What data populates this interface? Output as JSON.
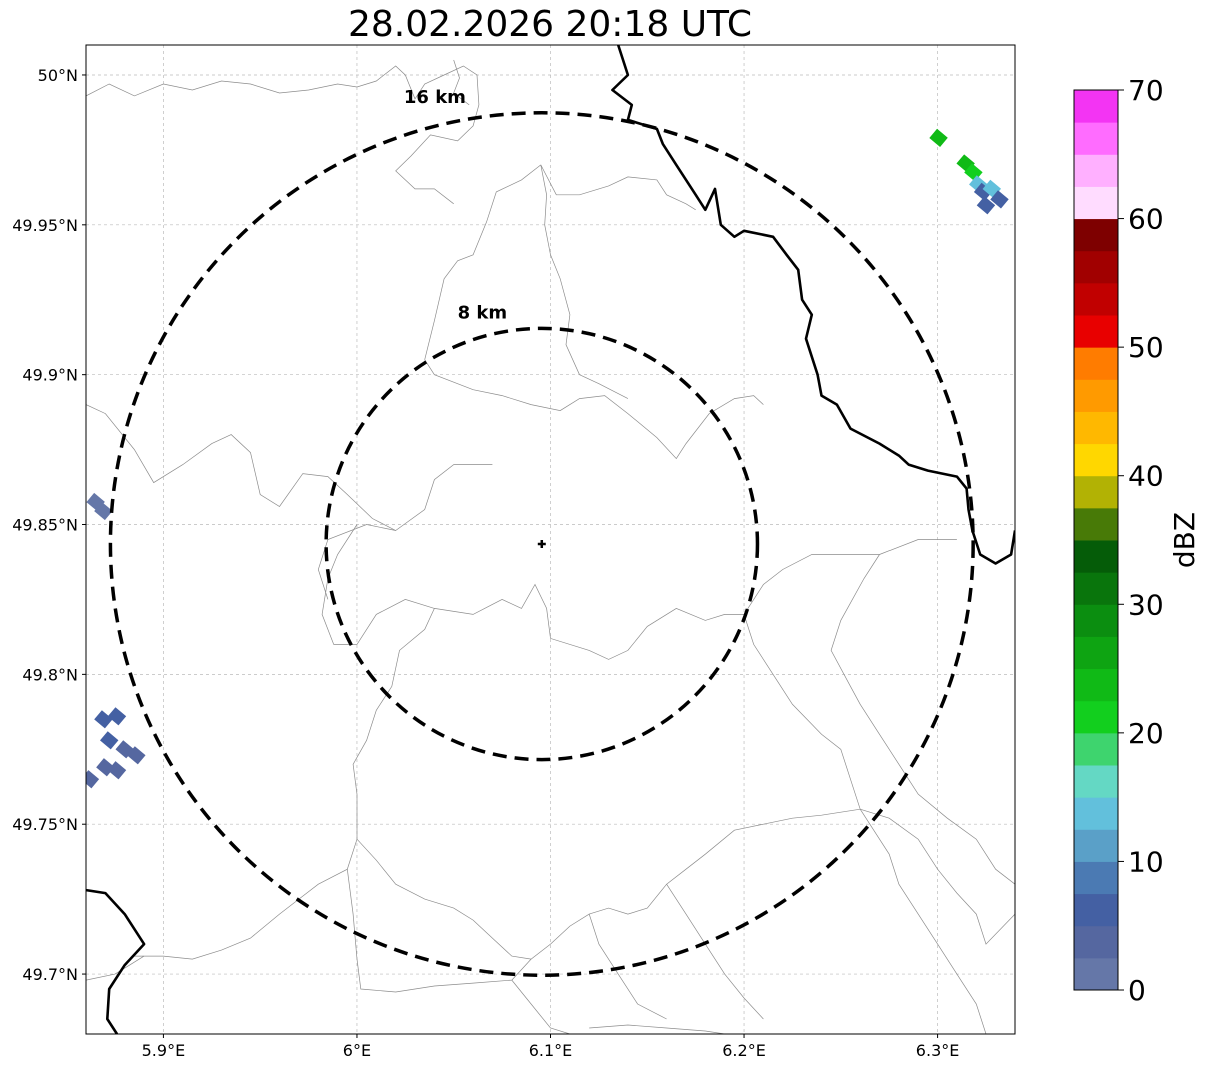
{
  "title": "28.02.2026 20:18 UTC",
  "map": {
    "lon_range": [
      5.86,
      6.34
    ],
    "lat_range": [
      49.68,
      50.01
    ],
    "grid": true,
    "lon_ticks": [
      {
        "value": 5.9,
        "label": "5.9°E"
      },
      {
        "value": 6.0,
        "label": "6°E"
      },
      {
        "value": 6.1,
        "label": "6.1°E"
      },
      {
        "value": 6.2,
        "label": "6.2°E"
      },
      {
        "value": 6.3,
        "label": "6.3°E"
      }
    ],
    "lat_ticks": [
      {
        "value": 50.0,
        "label": "50°N"
      },
      {
        "value": 49.95,
        "label": "49.95°N"
      },
      {
        "value": 49.9,
        "label": "49.9°N"
      },
      {
        "value": 49.85,
        "label": "49.85°N"
      },
      {
        "value": 49.8,
        "label": "49.8°N"
      },
      {
        "value": 49.75,
        "label": "49.75°N"
      },
      {
        "value": 49.7,
        "label": "49.7°N"
      }
    ],
    "radar_center": {
      "lon": 6.0955,
      "lat": 49.8435
    },
    "range_rings": [
      {
        "label": "8 km",
        "radius_km": 8
      },
      {
        "label": "16 km",
        "radius_km": 16
      }
    ]
  },
  "colorbar": {
    "label": "dBZ",
    "ticks": [
      {
        "value": 0,
        "label": "0"
      },
      {
        "value": 10,
        "label": "10"
      },
      {
        "value": 20,
        "label": "20"
      },
      {
        "value": 30,
        "label": "30"
      },
      {
        "value": 40,
        "label": "40"
      },
      {
        "value": 50,
        "label": "50"
      },
      {
        "value": 60,
        "label": "60"
      },
      {
        "value": 70,
        "label": "70"
      }
    ],
    "colors": [
      "#6577a8",
      "#5567a0",
      "#4460a3",
      "#4b7ab3",
      "#5aa0c8",
      "#62c0dc",
      "#64d8c4",
      "#3ed46e",
      "#12cf1e",
      "#10ba16",
      "#0ea412",
      "#0b8e10",
      "#09750c",
      "#055c08",
      "#487a07",
      "#b2b204",
      "#ffd700",
      "#ffb800",
      "#ff9a00",
      "#ff7c00",
      "#e80000",
      "#c10000",
      "#a10000",
      "#7e0000",
      "#ffdcff",
      "#ffb0ff",
      "#ff6cff",
      "#f334f3"
    ]
  },
  "echoes": [
    {
      "lon": 6.3005,
      "lat": 49.979,
      "dbz": 24
    },
    {
      "lon": 6.3145,
      "lat": 49.9705,
      "dbz": 24
    },
    {
      "lon": 6.3185,
      "lat": 49.9675,
      "dbz": 20
    },
    {
      "lon": 6.321,
      "lat": 49.9635,
      "dbz": 13
    },
    {
      "lon": 6.3235,
      "lat": 49.961,
      "dbz": 7
    },
    {
      "lon": 6.328,
      "lat": 49.962,
      "dbz": 13
    },
    {
      "lon": 6.332,
      "lat": 49.9585,
      "dbz": 7
    },
    {
      "lon": 6.325,
      "lat": 49.9565,
      "dbz": 7
    },
    {
      "lon": 5.865,
      "lat": 49.8575,
      "dbz": 2
    },
    {
      "lon": 5.869,
      "lat": 49.8545,
      "dbz": 2
    },
    {
      "lon": 5.869,
      "lat": 49.785,
      "dbz": 5
    },
    {
      "lon": 5.876,
      "lat": 49.786,
      "dbz": 5
    },
    {
      "lon": 5.872,
      "lat": 49.778,
      "dbz": 5
    },
    {
      "lon": 5.88,
      "lat": 49.775,
      "dbz": 3
    },
    {
      "lon": 5.886,
      "lat": 49.773,
      "dbz": 3
    },
    {
      "lon": 5.87,
      "lat": 49.769,
      "dbz": 3
    },
    {
      "lon": 5.876,
      "lat": 49.768,
      "dbz": 3
    },
    {
      "lon": 5.862,
      "lat": 49.765,
      "dbz": 3
    }
  ],
  "borders": [
    [
      [
        6.135,
        50.01
      ],
      [
        6.14,
        50.0
      ],
      [
        6.132,
        49.995
      ],
      [
        6.142,
        49.99
      ],
      [
        6.14,
        49.985
      ],
      [
        6.155,
        49.982
      ],
      [
        6.158,
        49.977
      ],
      [
        6.165,
        49.97
      ],
      [
        6.175,
        49.96
      ],
      [
        6.18,
        49.955
      ],
      [
        6.185,
        49.962
      ],
      [
        6.188,
        49.95
      ],
      [
        6.195,
        49.946
      ],
      [
        6.2,
        49.948
      ],
      [
        6.215,
        49.946
      ],
      [
        6.222,
        49.94
      ],
      [
        6.228,
        49.935
      ],
      [
        6.23,
        49.925
      ],
      [
        6.235,
        49.92
      ],
      [
        6.232,
        49.912
      ],
      [
        6.238,
        49.9
      ],
      [
        6.24,
        49.893
      ],
      [
        6.248,
        49.89
      ],
      [
        6.255,
        49.882
      ],
      [
        6.27,
        49.877
      ],
      [
        6.28,
        49.873
      ],
      [
        6.285,
        49.87
      ],
      [
        6.295,
        49.868
      ],
      [
        6.31,
        49.866
      ],
      [
        6.315,
        49.862
      ],
      [
        6.316,
        49.855
      ],
      [
        6.318,
        49.848
      ],
      [
        6.322,
        49.84
      ],
      [
        6.33,
        49.837
      ],
      [
        6.338,
        49.84
      ],
      [
        6.34,
        49.848
      ]
    ],
    [
      [
        5.86,
        49.728
      ],
      [
        5.87,
        49.727
      ],
      [
        5.88,
        49.72
      ],
      [
        5.89,
        49.71
      ],
      [
        5.88,
        49.703
      ],
      [
        5.872,
        49.695
      ],
      [
        5.871,
        49.685
      ],
      [
        5.876,
        49.68
      ]
    ]
  ],
  "admin_lines": [
    [
      [
        5.86,
        49.993
      ],
      [
        5.872,
        49.997
      ],
      [
        5.885,
        49.993
      ],
      [
        5.9,
        49.997
      ],
      [
        5.915,
        49.995
      ],
      [
        5.93,
        49.998
      ],
      [
        5.945,
        49.997
      ],
      [
        5.96,
        49.994
      ],
      [
        5.975,
        49.995
      ],
      [
        5.99,
        49.997
      ],
      [
        6.0,
        49.996
      ],
      [
        6.01,
        49.998
      ],
      [
        6.02,
        50.003
      ],
      [
        6.025,
        50.0
      ],
      [
        6.03,
        49.992
      ],
      [
        6.035,
        49.997
      ],
      [
        6.045,
        50.0
      ],
      [
        6.055,
        50.003
      ],
      [
        6.062,
        50.0
      ],
      [
        6.063,
        49.99
      ],
      [
        6.06,
        49.983
      ],
      [
        6.052,
        49.978
      ],
      [
        6.038,
        49.98
      ],
      [
        6.028,
        49.973
      ],
      [
        6.02,
        49.968
      ],
      [
        6.03,
        49.962
      ],
      [
        6.04,
        49.962
      ],
      [
        6.05,
        49.957
      ]
    ],
    [
      [
        6.05,
        50.005
      ],
      [
        6.053,
        49.999
      ],
      [
        6.05,
        49.994
      ],
      [
        6.058,
        49.99
      ]
    ],
    [
      [
        6.095,
        49.97
      ],
      [
        6.085,
        49.965
      ],
      [
        6.072,
        49.961
      ],
      [
        6.067,
        49.951
      ],
      [
        6.06,
        49.94
      ],
      [
        6.052,
        49.938
      ],
      [
        6.045,
        49.932
      ],
      [
        6.04,
        49.918
      ],
      [
        6.035,
        49.905
      ]
    ],
    [
      [
        6.095,
        49.97
      ],
      [
        6.098,
        49.96
      ],
      [
        6.097,
        49.95
      ],
      [
        6.1,
        49.94
      ],
      [
        6.105,
        49.932
      ],
      [
        6.11,
        49.92
      ],
      [
        6.108,
        49.91
      ],
      [
        6.115,
        49.9
      ]
    ],
    [
      [
        6.095,
        49.97
      ],
      [
        6.103,
        49.96
      ],
      [
        6.115,
        49.96
      ],
      [
        6.13,
        49.963
      ],
      [
        6.14,
        49.966
      ],
      [
        6.155,
        49.965
      ],
      [
        6.16,
        49.96
      ],
      [
        6.17,
        49.957
      ],
      [
        6.175,
        49.955
      ]
    ],
    [
      [
        5.86,
        49.89
      ],
      [
        5.87,
        49.887
      ],
      [
        5.885,
        49.875
      ],
      [
        5.895,
        49.864
      ],
      [
        5.91,
        49.87
      ],
      [
        5.925,
        49.877
      ],
      [
        5.935,
        49.88
      ],
      [
        5.945,
        49.874
      ],
      [
        5.95,
        49.86
      ],
      [
        5.96,
        49.856
      ],
      [
        5.972,
        49.867
      ],
      [
        5.985,
        49.866
      ],
      [
        5.995,
        49.86
      ],
      [
        6.008,
        49.852
      ],
      [
        6.02,
        49.848
      ],
      [
        6.035,
        49.855
      ],
      [
        6.04,
        49.865
      ],
      [
        6.05,
        49.87
      ],
      [
        6.07,
        49.87
      ]
    ],
    [
      [
        6.035,
        49.905
      ],
      [
        6.04,
        49.9
      ],
      [
        6.06,
        49.895
      ],
      [
        6.075,
        49.893
      ],
      [
        6.09,
        49.89
      ],
      [
        6.105,
        49.888
      ],
      [
        6.115,
        49.892
      ],
      [
        6.128,
        49.893
      ],
      [
        6.14,
        49.887
      ],
      [
        6.155,
        49.879
      ],
      [
        6.165,
        49.872
      ],
      [
        6.17,
        49.877
      ],
      [
        6.182,
        49.887
      ],
      [
        6.195,
        49.892
      ],
      [
        6.205,
        49.893
      ],
      [
        6.21,
        49.89
      ]
    ],
    [
      [
        6.115,
        49.9
      ],
      [
        6.125,
        49.897
      ],
      [
        6.14,
        49.892
      ]
    ],
    [
      [
        6.0,
        49.85
      ],
      [
        5.99,
        49.84
      ],
      [
        5.985,
        49.832
      ],
      [
        5.982,
        49.82
      ],
      [
        5.988,
        49.81
      ],
      [
        6.0,
        49.81
      ],
      [
        6.01,
        49.82
      ],
      [
        6.025,
        49.825
      ],
      [
        6.04,
        49.822
      ],
      [
        6.06,
        49.82
      ],
      [
        6.075,
        49.825
      ],
      [
        6.085,
        49.822
      ],
      [
        6.092,
        49.83
      ],
      [
        6.098,
        49.822
      ],
      [
        6.1,
        49.812
      ],
      [
        6.12,
        49.808
      ],
      [
        6.13,
        49.805
      ],
      [
        6.14,
        49.808
      ],
      [
        6.15,
        49.816
      ],
      [
        6.165,
        49.822
      ],
      [
        6.18,
        49.818
      ],
      [
        6.19,
        49.82
      ],
      [
        6.2,
        49.82
      ]
    ],
    [
      [
        6.04,
        49.822
      ],
      [
        6.035,
        49.815
      ],
      [
        6.022,
        49.808
      ],
      [
        6.018,
        49.796
      ],
      [
        6.01,
        49.788
      ],
      [
        6.005,
        49.778
      ],
      [
        5.998,
        49.77
      ],
      [
        6.0,
        49.76
      ],
      [
        6.0,
        49.745
      ],
      [
        5.995,
        49.735
      ],
      [
        5.98,
        49.73
      ],
      [
        5.97,
        49.725
      ],
      [
        5.96,
        49.72
      ],
      [
        5.945,
        49.712
      ],
      [
        5.93,
        49.708
      ],
      [
        5.915,
        49.705
      ],
      [
        5.9,
        49.706
      ],
      [
        5.885,
        49.706
      ]
    ],
    [
      [
        6.2,
        49.82
      ],
      [
        6.205,
        49.81
      ],
      [
        6.215,
        49.8
      ],
      [
        6.225,
        49.79
      ],
      [
        6.24,
        49.78
      ],
      [
        6.25,
        49.775
      ],
      [
        6.255,
        49.765
      ],
      [
        6.26,
        49.755
      ]
    ],
    [
      [
        6.27,
        49.84
      ],
      [
        6.262,
        49.832
      ],
      [
        6.25,
        49.818
      ],
      [
        6.245,
        49.808
      ],
      [
        6.255,
        49.796
      ],
      [
        6.26,
        49.79
      ],
      [
        6.27,
        49.78
      ],
      [
        6.28,
        49.77
      ],
      [
        6.29,
        49.76
      ],
      [
        6.305,
        49.752
      ],
      [
        6.32,
        49.745
      ],
      [
        6.33,
        49.735
      ],
      [
        6.34,
        49.73
      ]
    ],
    [
      [
        6.27,
        49.84
      ],
      [
        6.29,
        49.845
      ],
      [
        6.31,
        49.845
      ]
    ],
    [
      [
        6.26,
        49.755
      ],
      [
        6.275,
        49.74
      ],
      [
        6.28,
        49.73
      ],
      [
        6.29,
        49.72
      ],
      [
        6.3,
        49.71
      ],
      [
        6.31,
        49.7
      ],
      [
        6.32,
        49.69
      ],
      [
        6.325,
        49.68
      ]
    ],
    [
      [
        6.26,
        49.755
      ],
      [
        6.275,
        49.752
      ],
      [
        6.29,
        49.745
      ],
      [
        6.3,
        49.735
      ],
      [
        6.31,
        49.727
      ],
      [
        6.32,
        49.72
      ],
      [
        6.325,
        49.71
      ],
      [
        6.34,
        49.72
      ]
    ],
    [
      [
        6.0,
        49.745
      ],
      [
        6.01,
        49.738
      ],
      [
        6.02,
        49.73
      ],
      [
        6.035,
        49.725
      ],
      [
        6.05,
        49.722
      ],
      [
        6.06,
        49.718
      ],
      [
        6.07,
        49.712
      ],
      [
        6.08,
        49.706
      ],
      [
        6.09,
        49.705
      ],
      [
        6.1,
        49.71
      ],
      [
        6.11,
        49.716
      ],
      [
        6.12,
        49.72
      ],
      [
        6.13,
        49.722
      ],
      [
        6.14,
        49.72
      ],
      [
        6.15,
        49.722
      ],
      [
        6.16,
        49.73
      ],
      [
        6.17,
        49.735
      ],
      [
        6.18,
        49.74
      ],
      [
        6.195,
        49.748
      ],
      [
        6.21,
        49.75
      ],
      [
        6.225,
        49.752
      ],
      [
        6.24,
        49.753
      ],
      [
        6.26,
        49.755
      ]
    ],
    [
      [
        5.86,
        49.698
      ],
      [
        5.875,
        49.7
      ],
      [
        5.89,
        49.706
      ]
    ],
    [
      [
        5.995,
        49.735
      ],
      [
        5.998,
        49.72
      ],
      [
        6.0,
        49.705
      ],
      [
        6.002,
        49.695
      ],
      [
        6.02,
        49.694
      ],
      [
        6.04,
        49.696
      ],
      [
        6.06,
        49.697
      ],
      [
        6.08,
        49.698
      ],
      [
        6.09,
        49.705
      ]
    ],
    [
      [
        6.08,
        49.698
      ],
      [
        6.09,
        49.69
      ],
      [
        6.1,
        49.682
      ],
      [
        6.11,
        49.68
      ]
    ],
    [
      [
        6.12,
        49.72
      ],
      [
        6.125,
        49.71
      ],
      [
        6.135,
        49.7
      ],
      [
        6.145,
        49.69
      ],
      [
        6.16,
        49.685
      ]
    ],
    [
      [
        6.16,
        49.73
      ],
      [
        6.17,
        49.72
      ],
      [
        6.18,
        49.71
      ],
      [
        6.19,
        49.7
      ],
      [
        6.2,
        49.692
      ],
      [
        6.21,
        49.685
      ]
    ],
    [
      [
        6.12,
        49.682
      ],
      [
        6.14,
        49.683
      ],
      [
        6.16,
        49.682
      ],
      [
        6.18,
        49.681
      ],
      [
        6.19,
        49.68
      ]
    ],
    [
      [
        6.02,
        49.848
      ],
      [
        6.005,
        49.85
      ],
      [
        5.985,
        49.845
      ],
      [
        5.98,
        49.835
      ],
      [
        5.985,
        49.825
      ]
    ],
    [
      [
        6.2,
        49.82
      ],
      [
        6.21,
        49.83
      ],
      [
        6.22,
        49.835
      ],
      [
        6.235,
        49.84
      ],
      [
        6.25,
        49.84
      ],
      [
        6.27,
        49.84
      ]
    ]
  ]
}
